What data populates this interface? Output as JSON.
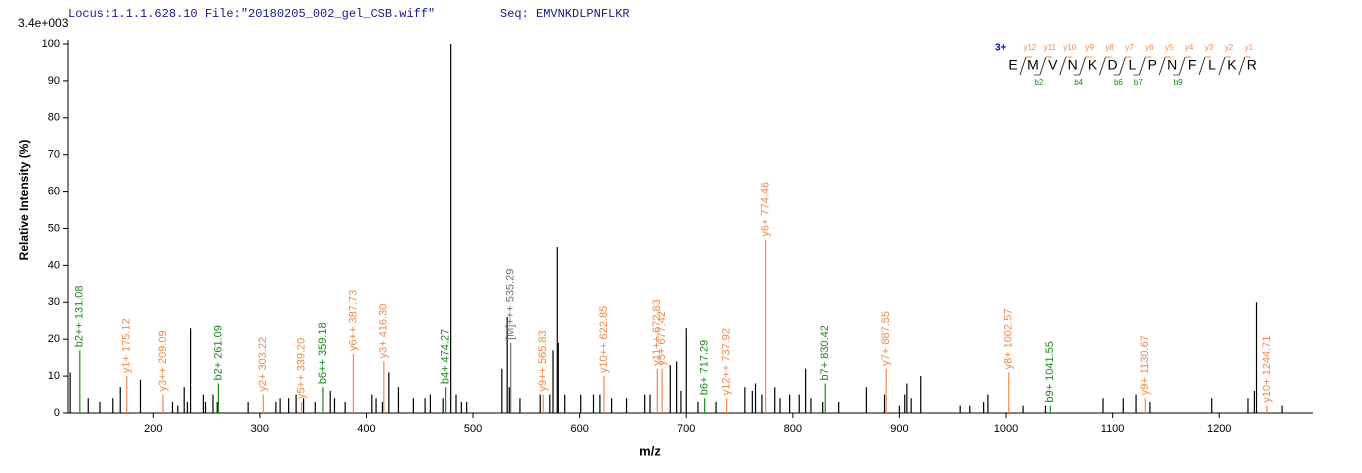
{
  "header": {
    "locus": "Locus:1.1.1.628.10 File:\"20180205_002_gel_CSB.wiff\"",
    "seq": "Seq: EMVNKDLPNFLKR"
  },
  "chart_data": {
    "type": "stem",
    "intensity_scale": "3.4e+003",
    "x_label": "m/z",
    "y_label": "Relative  Intensity (%)",
    "xlim": [
      120,
      1288
    ],
    "xticks": [
      200,
      300,
      400,
      500,
      600,
      700,
      800,
      900,
      1000,
      1100,
      1200
    ],
    "ylim": [
      0,
      100
    ],
    "yticks": [
      0,
      10,
      20,
      30,
      40,
      50,
      60,
      70,
      80,
      90,
      100
    ],
    "peaks": {
      "color": "#000000",
      "x": [
        122,
        139,
        150,
        162,
        169,
        188,
        218,
        223,
        229,
        232,
        235,
        247,
        249,
        256,
        260,
        289,
        315,
        319,
        327,
        334,
        341,
        352,
        366,
        370,
        380,
        405,
        409,
        415,
        421,
        430,
        444,
        455,
        460,
        472,
        479,
        484,
        489,
        494,
        527,
        532,
        534,
        544,
        563,
        572,
        575,
        579,
        580,
        586,
        601,
        613,
        619,
        630,
        644,
        661,
        666,
        685,
        691,
        695,
        700,
        711,
        728,
        755,
        762,
        765,
        771,
        783,
        788,
        797,
        806,
        812,
        817,
        828,
        843,
        869,
        886,
        900,
        905,
        907,
        911,
        920,
        957,
        966,
        979,
        983,
        1016,
        1037,
        1091,
        1110,
        1122,
        1135,
        1193,
        1227,
        1233,
        1235,
        1259
      ],
      "values": [
        11,
        4,
        3,
        4,
        7,
        9,
        3,
        2,
        7,
        3,
        23,
        5,
        3,
        5,
        3,
        3,
        3,
        4,
        4,
        5,
        4,
        3,
        6,
        4,
        3,
        5,
        4,
        3,
        11,
        7,
        4,
        4,
        5,
        4,
        100,
        5,
        3,
        3,
        12,
        26,
        7,
        4,
        5,
        5,
        17,
        45,
        19,
        5,
        5,
        5,
        5,
        4,
        4,
        5,
        5,
        13,
        14,
        6,
        23,
        3,
        3,
        7,
        6,
        8,
        5,
        7,
        4,
        5,
        5,
        12,
        4,
        3,
        3,
        7,
        5,
        2,
        5,
        8,
        4,
        10,
        2,
        2,
        3,
        5,
        2,
        2,
        4,
        4,
        5,
        3,
        4,
        4,
        6,
        30,
        2
      ]
    },
    "annotated": {
      "x": [
        131.08,
        175.12,
        209.09,
        261.09,
        303.22,
        339.2,
        359.18,
        387.73,
        416.3,
        474.27,
        535.29,
        565.83,
        622.85,
        672.83,
        677.42,
        717.29,
        737.92,
        774.46,
        830.42,
        887.55,
        1002.57,
        1041.55,
        1130.67,
        1244.71
      ],
      "values": [
        17,
        10,
        5,
        8,
        5,
        3,
        7,
        16,
        14,
        7,
        19,
        5,
        10,
        12,
        12,
        4,
        4,
        47,
        8,
        12,
        11,
        2,
        4,
        2
      ],
      "labels": [
        "b2++ 131.08",
        "y1+ 175.12",
        "y3++ 209.09",
        "b2+ 261.09",
        "y2+ 303.22",
        "y5++ 339.20",
        "b6++ 359.18",
        "y6++ 387.73",
        "y3+ 416.30",
        "b4+ 474.27",
        "[M]+++ 535.29",
        "y9++ 565.83",
        "y10++ 622.85",
        "y11++ 672.83",
        "y5+ 677.42",
        "b6+ 717.29",
        "y12++ 737.92",
        "y6+ 774.46",
        "b7+ 830.42",
        "y7+ 887.55",
        "y8+ 1002.57",
        "b9+ 1041.55",
        "y9+ 1130.67",
        "y10+ 1244.71"
      ],
      "colors": [
        "#1a8a1a",
        "#f08a4b",
        "#f08a4b",
        "#1a8a1a",
        "#f08a4b",
        "#f08a4b",
        "#1a8a1a",
        "#f08a4b",
        "#f08a4b",
        "#1a8a1a",
        "#707070",
        "#f08a4b",
        "#f08a4b",
        "#f08a4b",
        "#f08a4b",
        "#1a8a1a",
        "#f08a4b",
        "#f08a4b",
        "#1a8a1a",
        "#f08a4b",
        "#f08a4b",
        "#1a8a1a",
        "#f08a4b",
        "#f08a4b"
      ]
    }
  },
  "sequence": {
    "charge": "3+",
    "residues": [
      "E",
      "M",
      "V",
      "N",
      "K",
      "D",
      "L",
      "P",
      "N",
      "F",
      "L",
      "K",
      "R"
    ],
    "y_ions": [
      "y12",
      "y11",
      "y10",
      "y9",
      "y8",
      "y7",
      "y6",
      "y5",
      "y4",
      "y3",
      "y2",
      "y1"
    ],
    "b_ions": [
      null,
      "b2",
      null,
      "b4",
      null,
      "b6",
      "b7",
      null,
      "b9",
      null,
      null,
      null
    ]
  }
}
